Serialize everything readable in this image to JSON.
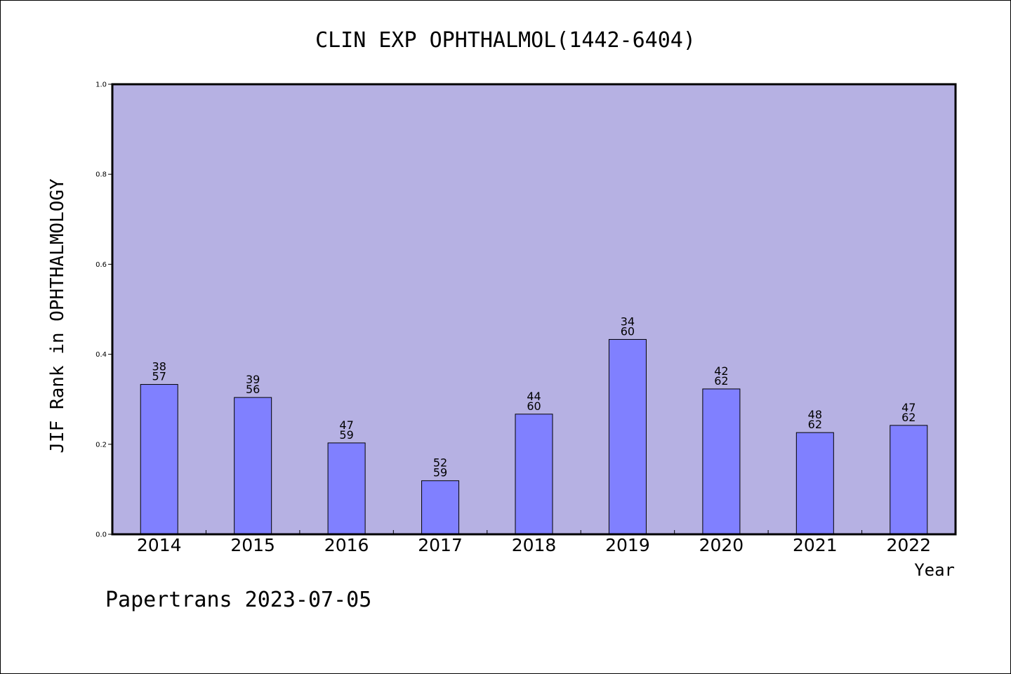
{
  "footer": "Papertrans 2023-07-05",
  "colors": {
    "plot_background": "#b6b1e3",
    "bar_fill": "#8080ff",
    "bar_stroke": "#000000"
  },
  "chart_data": {
    "type": "bar",
    "title": "CLIN EXP OPHTHALMOL(1442-6404)",
    "xlabel": "Year",
    "ylabel": "JIF Rank in OPHTHALMOLOGY",
    "ylim": [
      0,
      1.0
    ],
    "yticks": [
      "0.0",
      "0.2",
      "0.4",
      "0.6",
      "0.8",
      "1.0"
    ],
    "grid": false,
    "categories": [
      "2014",
      "2015",
      "2016",
      "2017",
      "2018",
      "2019",
      "2020",
      "2021",
      "2022"
    ],
    "values": [
      0.333,
      0.304,
      0.203,
      0.119,
      0.267,
      0.433,
      0.323,
      0.226,
      0.242
    ],
    "label_top": [
      "38",
      "39",
      "47",
      "52",
      "44",
      "34",
      "42",
      "48",
      "47"
    ],
    "label_bottom": [
      "57",
      "56",
      "59",
      "59",
      "60",
      "60",
      "62",
      "62",
      "62"
    ]
  }
}
